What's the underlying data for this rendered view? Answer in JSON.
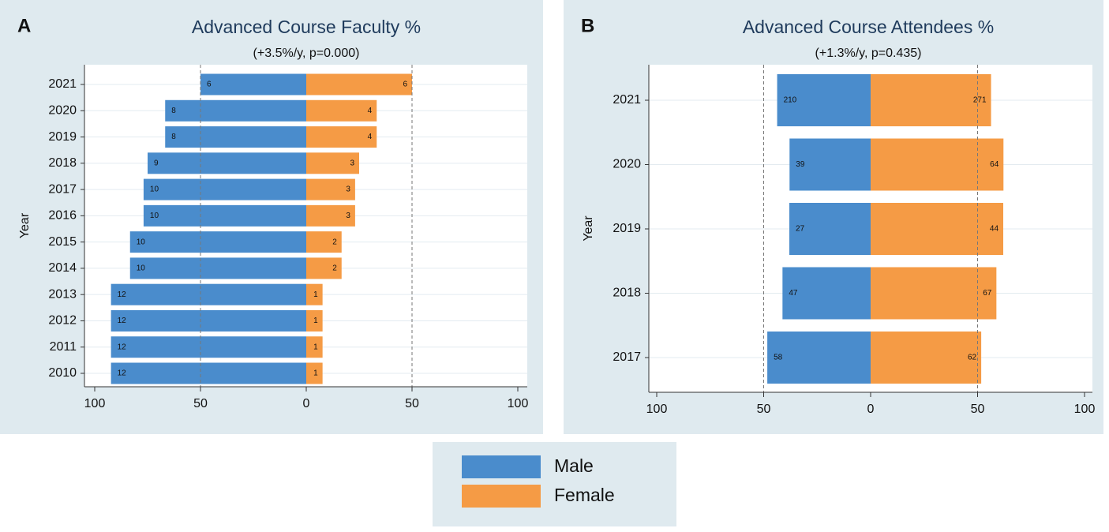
{
  "chart_data": [
    {
      "type": "butterfly",
      "panel": "A",
      "title": "Advanced Course Faculty %",
      "subtitle": "(+3.5%/y, p=0.000)",
      "ylabel": "Year",
      "categories": [
        "2021",
        "2020",
        "2019",
        "2018",
        "2017",
        "2016",
        "2015",
        "2014",
        "2013",
        "2012",
        "2011",
        "2010"
      ],
      "series": [
        {
          "name": "Male",
          "color": "#4a8ccc",
          "values": [
            -50,
            -66.7,
            -66.7,
            -75,
            -76.9,
            -76.9,
            -83.3,
            -83.3,
            -92.3,
            -92.3,
            -92.3,
            -92.3
          ],
          "counts": [
            6,
            8,
            8,
            9,
            10,
            10,
            10,
            10,
            12,
            12,
            12,
            12
          ]
        },
        {
          "name": "Female",
          "color": "#f59b45",
          "values": [
            50,
            33.3,
            33.3,
            25,
            23.1,
            23.1,
            16.7,
            16.7,
            7.7,
            7.7,
            7.7,
            7.7
          ],
          "counts": [
            6,
            4,
            4,
            3,
            3,
            3,
            2,
            2,
            1,
            1,
            1,
            1
          ]
        }
      ],
      "xlim": [
        -100,
        100
      ],
      "xticks": [
        {
          "value": -100,
          "label": "100"
        },
        {
          "value": -50,
          "label": "50"
        },
        0,
        50,
        100
      ],
      "reference_lines": [
        -50,
        50
      ],
      "grid": true
    },
    {
      "type": "butterfly",
      "panel": "B",
      "title": "Advanced Course Attendees %",
      "subtitle": "(+1.3%/y, p=0.435)",
      "ylabel": "Year",
      "categories": [
        "2021",
        "2020",
        "2019",
        "2018",
        "2017"
      ],
      "series": [
        {
          "color": "#4a8ccc",
          "values": [
            -43.7,
            -37.9,
            -38,
            -41.2,
            -48.3
          ],
          "counts": [
            210,
            39,
            27,
            47,
            58
          ]
        },
        {
          "color": "#f59b45",
          "values": [
            56.3,
            62.1,
            62,
            58.8,
            51.7
          ],
          "counts": [
            271,
            64,
            44,
            67,
            62
          ]
        }
      ],
      "xlim": [
        -100,
        100
      ],
      "xticks": [
        {
          "value": -100,
          "label": "100"
        },
        {
          "value": -50,
          "label": "50"
        },
        0,
        50,
        100
      ],
      "reference_lines": [
        -50,
        50
      ],
      "grid": true
    }
  ]
}
